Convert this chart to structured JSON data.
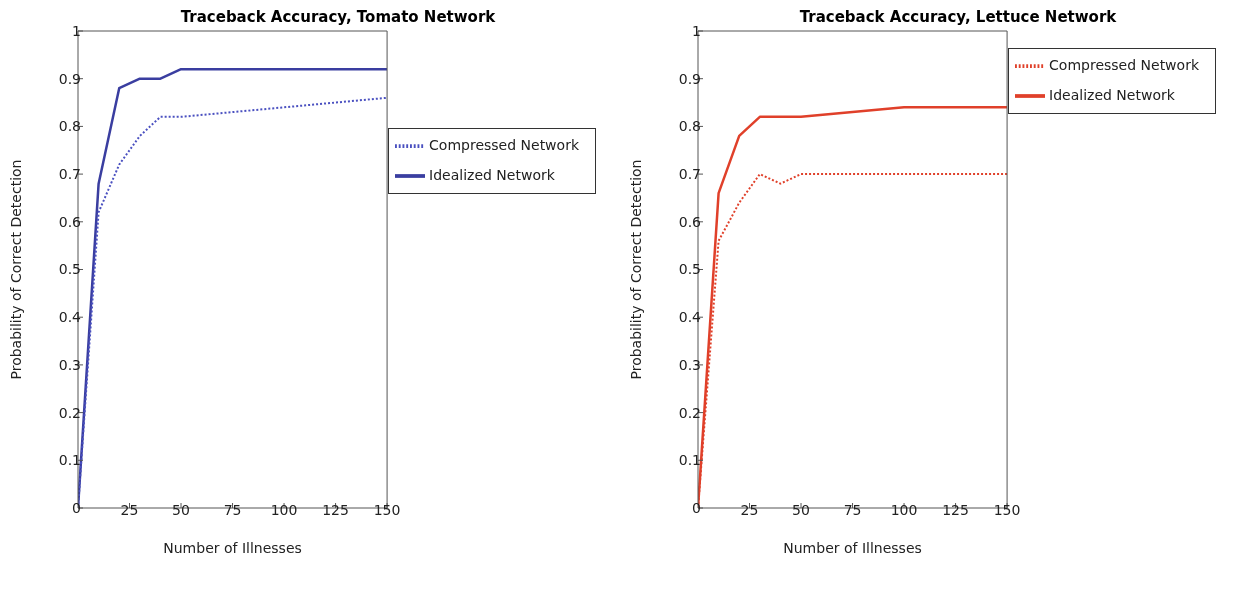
{
  "chart_data": [
    {
      "type": "line",
      "title": "Traceback Accuracy, Tomato Network",
      "xlabel": "Number of Illnesses",
      "ylabel": "Probability of Correct Detection",
      "xlim": [
        0,
        150
      ],
      "xticks": [
        25,
        50,
        75,
        100,
        125,
        150
      ],
      "ylim": [
        0,
        1
      ],
      "yticks": [
        0,
        0.1,
        0.2,
        0.3,
        0.4,
        0.5,
        0.6,
        0.7,
        0.8,
        0.9,
        1
      ],
      "grid": false,
      "legend": "right",
      "marker": "none",
      "series": [
        {
          "name": "Idealized Network",
          "color": "#3a3ea0",
          "line_style": "solid",
          "x": [
            0,
            10,
            20,
            30,
            40,
            50,
            150
          ],
          "values": [
            0,
            0.68,
            0.88,
            0.9,
            0.9,
            0.92,
            0.92
          ]
        },
        {
          "name": "Compressed Network",
          "color": "#4a50c0",
          "line_style": "dotted",
          "x": [
            0,
            10,
            20,
            30,
            40,
            50,
            150
          ],
          "values": [
            0,
            0.62,
            0.72,
            0.78,
            0.82,
            0.82,
            0.86
          ]
        }
      ]
    },
    {
      "type": "line",
      "title": "Traceback Accuracy, Lettuce Network",
      "xlabel": "Number of Illnesses",
      "ylabel": "Probability of Correct Detection",
      "xlim": [
        0,
        150
      ],
      "xticks": [
        25,
        50,
        75,
        100,
        125,
        150
      ],
      "ylim": [
        0,
        1
      ],
      "yticks": [
        0,
        0.1,
        0.2,
        0.3,
        0.4,
        0.5,
        0.6,
        0.7,
        0.8,
        0.9,
        1
      ],
      "grid": false,
      "legend": "top right",
      "marker": "none",
      "series": [
        {
          "name": "Idealized Network",
          "color": "#e0402a",
          "line_style": "solid",
          "x": [
            0,
            10,
            20,
            30,
            50,
            100,
            150
          ],
          "values": [
            0,
            0.66,
            0.78,
            0.82,
            0.82,
            0.84,
            0.84
          ]
        },
        {
          "name": "Compressed Network",
          "color": "#e0402a",
          "line_style": "dotted",
          "x": [
            0,
            10,
            20,
            30,
            40,
            50,
            150
          ],
          "values": [
            0,
            0.56,
            0.64,
            0.7,
            0.68,
            0.7,
            0.7
          ]
        }
      ]
    }
  ]
}
